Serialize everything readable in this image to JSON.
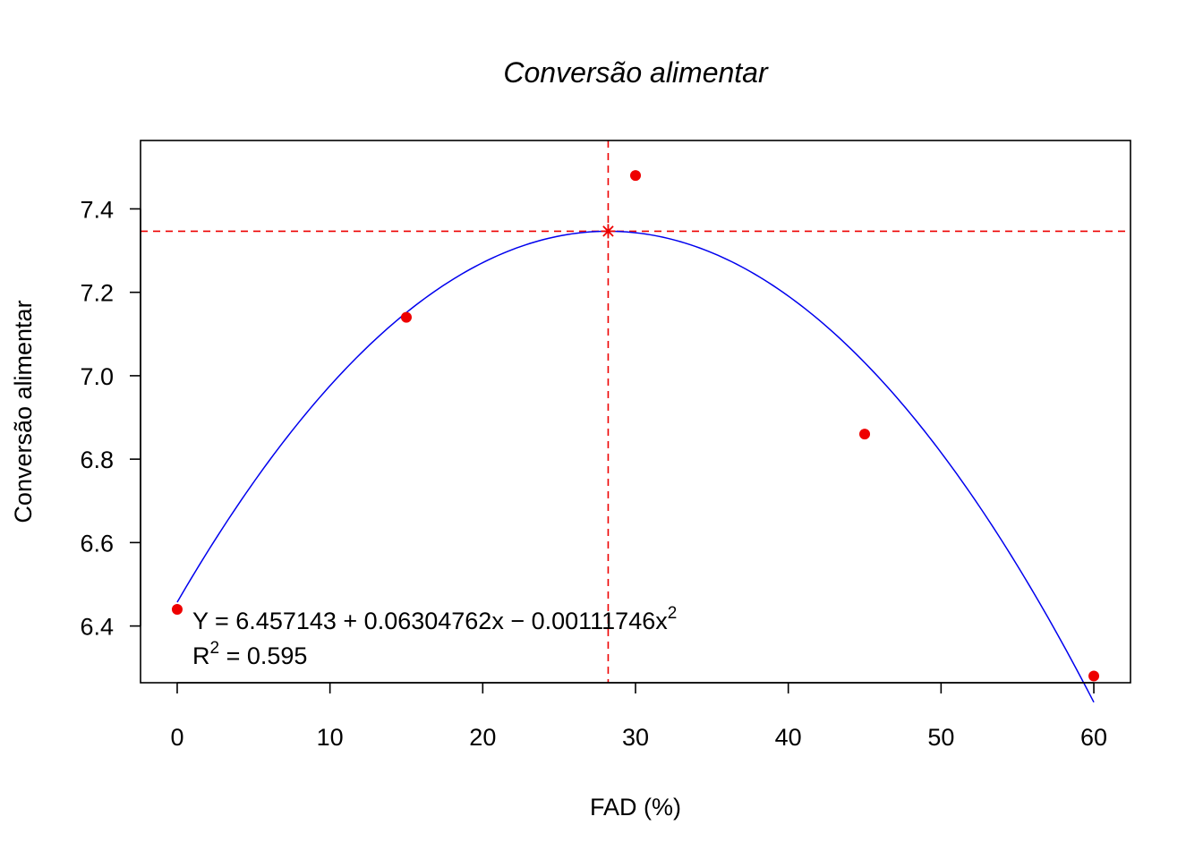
{
  "chart_data": {
    "type": "scatter",
    "title": "Conversão alimentar",
    "xlabel": "FAD (%)",
    "ylabel": "Conversão alimentar",
    "xlim": [
      -2.4,
      62.4
    ],
    "ylim": [
      6.264,
      7.564
    ],
    "x_ticks": [
      0,
      10,
      20,
      30,
      40,
      50,
      60
    ],
    "y_ticks": [
      6.4,
      6.6,
      6.8,
      7.0,
      7.2,
      7.4
    ],
    "x_tick_labels": [
      "0",
      "10",
      "20",
      "30",
      "40",
      "50",
      "60"
    ],
    "y_tick_labels": [
      "6.4",
      "6.6",
      "6.8",
      "7.0",
      "7.2",
      "7.4"
    ],
    "points": {
      "x": [
        0,
        15,
        30,
        45,
        60
      ],
      "y": [
        6.44,
        7.14,
        7.48,
        6.86,
        6.28
      ],
      "color": "#ee0000"
    },
    "fit": {
      "model": "quadratic",
      "coefficients": [
        6.457143,
        0.06304762,
        -0.00111746
      ],
      "x_range": [
        0,
        60
      ],
      "color": "#0000ee"
    },
    "maximum": {
      "x": 28.21,
      "y": 7.3465,
      "color": "#ee0000"
    },
    "annotations": {
      "equation_prefix": "Y = 6.457143 + 0.06304762x − 0.00111746x",
      "equation_exponent": "2",
      "r2_label": "R",
      "r2_exponent": "2",
      "r2_value": " = 0.595"
    }
  }
}
